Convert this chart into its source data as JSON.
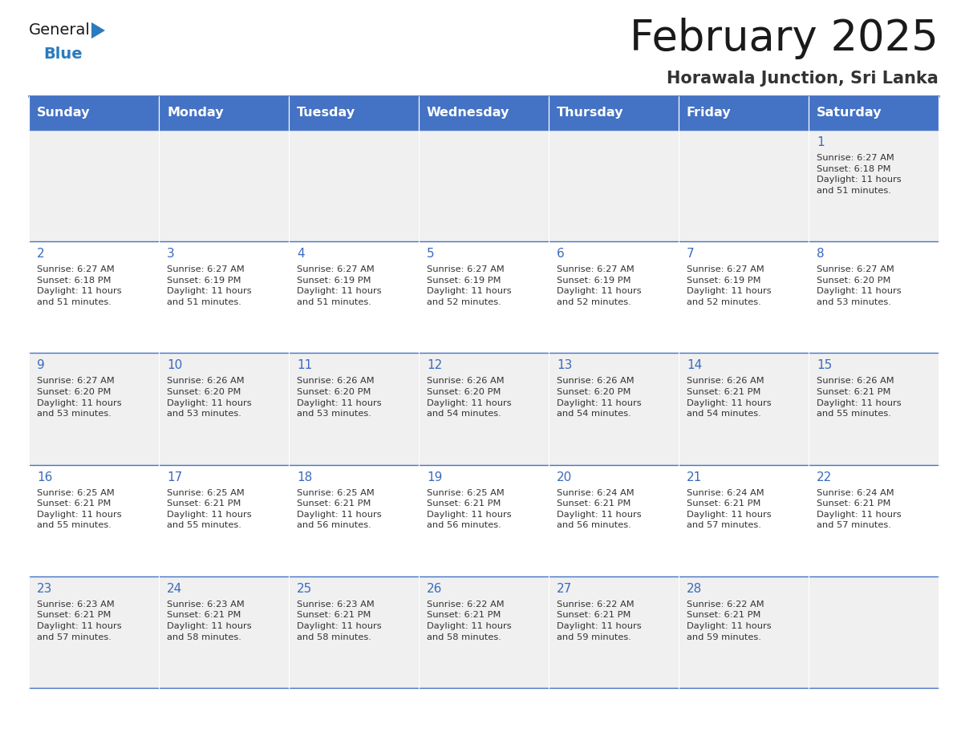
{
  "title": "February 2025",
  "subtitle": "Horawala Junction, Sri Lanka",
  "days_of_week": [
    "Sunday",
    "Monday",
    "Tuesday",
    "Wednesday",
    "Thursday",
    "Friday",
    "Saturday"
  ],
  "header_bg": "#4472C4",
  "header_text": "#FFFFFF",
  "row_bg_odd": "#F0F0F0",
  "row_bg_even": "#FFFFFF",
  "cell_text_color": "#333333",
  "day_num_color": "#3A6ABF",
  "border_color": "#4472C4",
  "title_color": "#1a1a1a",
  "subtitle_color": "#333333",
  "logo_general_color": "#1a1a1a",
  "logo_blue_color": "#2B7BBD",
  "calendar": [
    [
      null,
      null,
      null,
      null,
      null,
      null,
      {
        "day": 1,
        "sunrise": "6:27 AM",
        "sunset": "6:18 PM",
        "daylight": "11 hours and 51 minutes."
      }
    ],
    [
      {
        "day": 2,
        "sunrise": "6:27 AM",
        "sunset": "6:18 PM",
        "daylight": "11 hours and 51 minutes."
      },
      {
        "day": 3,
        "sunrise": "6:27 AM",
        "sunset": "6:19 PM",
        "daylight": "11 hours and 51 minutes."
      },
      {
        "day": 4,
        "sunrise": "6:27 AM",
        "sunset": "6:19 PM",
        "daylight": "11 hours and 51 minutes."
      },
      {
        "day": 5,
        "sunrise": "6:27 AM",
        "sunset": "6:19 PM",
        "daylight": "11 hours and 52 minutes."
      },
      {
        "day": 6,
        "sunrise": "6:27 AM",
        "sunset": "6:19 PM",
        "daylight": "11 hours and 52 minutes."
      },
      {
        "day": 7,
        "sunrise": "6:27 AM",
        "sunset": "6:19 PM",
        "daylight": "11 hours and 52 minutes."
      },
      {
        "day": 8,
        "sunrise": "6:27 AM",
        "sunset": "6:20 PM",
        "daylight": "11 hours and 53 minutes."
      }
    ],
    [
      {
        "day": 9,
        "sunrise": "6:27 AM",
        "sunset": "6:20 PM",
        "daylight": "11 hours and 53 minutes."
      },
      {
        "day": 10,
        "sunrise": "6:26 AM",
        "sunset": "6:20 PM",
        "daylight": "11 hours and 53 minutes."
      },
      {
        "day": 11,
        "sunrise": "6:26 AM",
        "sunset": "6:20 PM",
        "daylight": "11 hours and 53 minutes."
      },
      {
        "day": 12,
        "sunrise": "6:26 AM",
        "sunset": "6:20 PM",
        "daylight": "11 hours and 54 minutes."
      },
      {
        "day": 13,
        "sunrise": "6:26 AM",
        "sunset": "6:20 PM",
        "daylight": "11 hours and 54 minutes."
      },
      {
        "day": 14,
        "sunrise": "6:26 AM",
        "sunset": "6:21 PM",
        "daylight": "11 hours and 54 minutes."
      },
      {
        "day": 15,
        "sunrise": "6:26 AM",
        "sunset": "6:21 PM",
        "daylight": "11 hours and 55 minutes."
      }
    ],
    [
      {
        "day": 16,
        "sunrise": "6:25 AM",
        "sunset": "6:21 PM",
        "daylight": "11 hours and 55 minutes."
      },
      {
        "day": 17,
        "sunrise": "6:25 AM",
        "sunset": "6:21 PM",
        "daylight": "11 hours and 55 minutes."
      },
      {
        "day": 18,
        "sunrise": "6:25 AM",
        "sunset": "6:21 PM",
        "daylight": "11 hours and 56 minutes."
      },
      {
        "day": 19,
        "sunrise": "6:25 AM",
        "sunset": "6:21 PM",
        "daylight": "11 hours and 56 minutes."
      },
      {
        "day": 20,
        "sunrise": "6:24 AM",
        "sunset": "6:21 PM",
        "daylight": "11 hours and 56 minutes."
      },
      {
        "day": 21,
        "sunrise": "6:24 AM",
        "sunset": "6:21 PM",
        "daylight": "11 hours and 57 minutes."
      },
      {
        "day": 22,
        "sunrise": "6:24 AM",
        "sunset": "6:21 PM",
        "daylight": "11 hours and 57 minutes."
      }
    ],
    [
      {
        "day": 23,
        "sunrise": "6:23 AM",
        "sunset": "6:21 PM",
        "daylight": "11 hours and 57 minutes."
      },
      {
        "day": 24,
        "sunrise": "6:23 AM",
        "sunset": "6:21 PM",
        "daylight": "11 hours and 58 minutes."
      },
      {
        "day": 25,
        "sunrise": "6:23 AM",
        "sunset": "6:21 PM",
        "daylight": "11 hours and 58 minutes."
      },
      {
        "day": 26,
        "sunrise": "6:22 AM",
        "sunset": "6:21 PM",
        "daylight": "11 hours and 58 minutes."
      },
      {
        "day": 27,
        "sunrise": "6:22 AM",
        "sunset": "6:21 PM",
        "daylight": "11 hours and 59 minutes."
      },
      {
        "day": 28,
        "sunrise": "6:22 AM",
        "sunset": "6:21 PM",
        "daylight": "11 hours and 59 minutes."
      },
      null
    ]
  ]
}
